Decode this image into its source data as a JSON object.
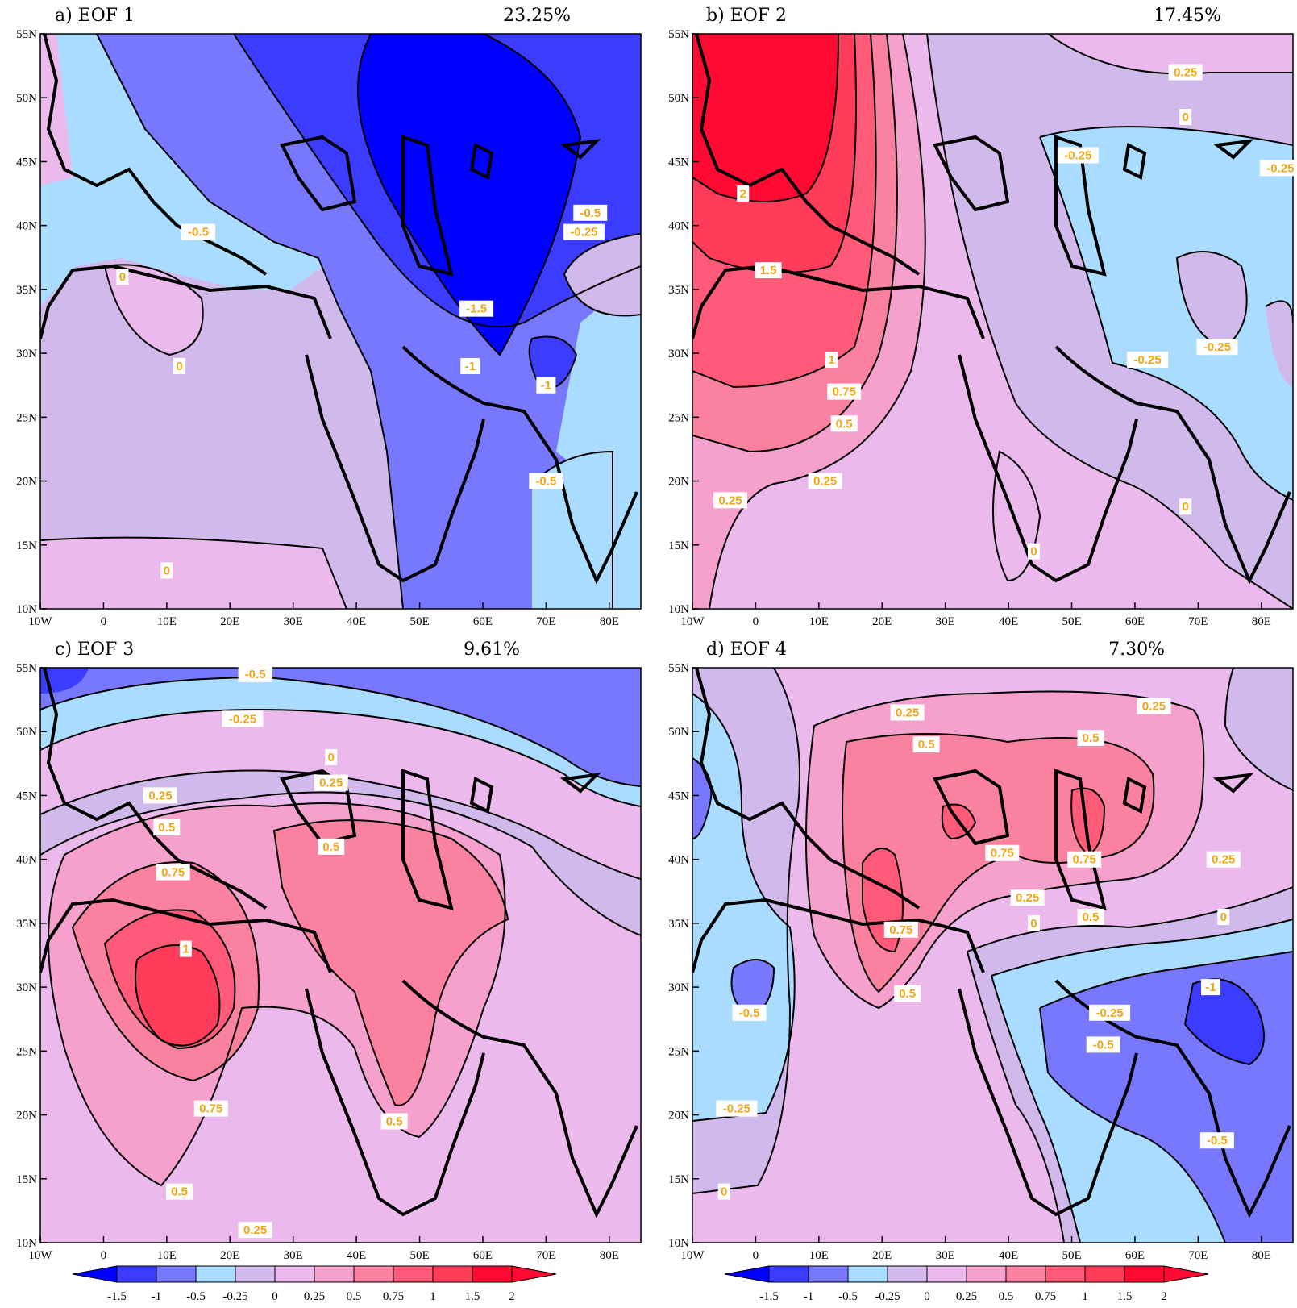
{
  "legend": {
    "levels": [
      "-1.5",
      "-1",
      "-0.5",
      "-0.25",
      "0",
      "0.25",
      "0.5",
      "0.75",
      "1",
      "1.5",
      "2"
    ],
    "colors": [
      "#0000ff",
      "#3c3cff",
      "#7878ff",
      "#aadcff",
      "#d2b9eb",
      "#ebb9eb",
      "#f5a0cd",
      "#fa82a0",
      "#ff5a78",
      "#ff3c5a",
      "#ff0a32",
      "#ff0a32"
    ]
  },
  "panels": [
    {
      "title": "a) EOF 1",
      "variance": "23.25%",
      "xticks": [
        "10W",
        "0",
        "10E",
        "20E",
        "30E",
        "40E",
        "50E",
        "60E",
        "70E",
        "80E"
      ],
      "yticks": [
        "55N",
        "50N",
        "45N",
        "40N",
        "35N",
        "30N",
        "25N",
        "20N",
        "15N",
        "10N"
      ],
      "contour_labels": [
        {
          "text": "-0.5",
          "lon": 15,
          "lat": 39.5
        },
        {
          "text": "0",
          "lon": 3,
          "lat": 36
        },
        {
          "text": "0",
          "lon": 12,
          "lat": 29
        },
        {
          "text": "-1.5",
          "lon": 59,
          "lat": 33.5
        },
        {
          "text": "-1",
          "lon": 58,
          "lat": 29
        },
        {
          "text": "-1",
          "lon": 70,
          "lat": 27.5
        },
        {
          "text": "-0.5",
          "lon": 77,
          "lat": 41
        },
        {
          "text": "-0.25",
          "lon": 76,
          "lat": 39.5
        },
        {
          "text": "-0.5",
          "lon": 70,
          "lat": 20
        },
        {
          "text": "0",
          "lon": 10,
          "lat": 13
        }
      ]
    },
    {
      "title": "b) EOF 2",
      "variance": "17.45%",
      "xticks": [
        "10W",
        "0",
        "10E",
        "20E",
        "30E",
        "40E",
        "50E",
        "60E",
        "70E",
        "80E"
      ],
      "yticks": [
        "55N",
        "50N",
        "45N",
        "40N",
        "35N",
        "30N",
        "25N",
        "20N",
        "15N",
        "10N"
      ],
      "contour_labels": [
        {
          "text": "2",
          "lon": -2,
          "lat": 42.5
        },
        {
          "text": "1.5",
          "lon": 2,
          "lat": 36.5
        },
        {
          "text": "1",
          "lon": 12,
          "lat": 29.5
        },
        {
          "text": "0.75",
          "lon": 14,
          "lat": 27
        },
        {
          "text": "0.5",
          "lon": 14,
          "lat": 24.5
        },
        {
          "text": "0.25",
          "lon": 11,
          "lat": 20
        },
        {
          "text": "0.25",
          "lon": -4,
          "lat": 18.5
        },
        {
          "text": "0.25",
          "lon": 68,
          "lat": 52
        },
        {
          "text": "0",
          "lon": 68,
          "lat": 48.5
        },
        {
          "text": "-0.25",
          "lon": 51,
          "lat": 45.5
        },
        {
          "text": "-0.25",
          "lon": 83,
          "lat": 44.5
        },
        {
          "text": "-0.25",
          "lon": 62,
          "lat": 29.5
        },
        {
          "text": "-0.25",
          "lon": 73,
          "lat": 30.5
        },
        {
          "text": "0",
          "lon": 44,
          "lat": 14.5
        },
        {
          "text": "0",
          "lon": 68,
          "lat": 18
        }
      ]
    },
    {
      "title": "c) EOF 3",
      "variance": "9.61%",
      "xticks": [
        "10W",
        "0",
        "10E",
        "20E",
        "30E",
        "40E",
        "50E",
        "60E",
        "70E",
        "80E"
      ],
      "yticks": [
        "55N",
        "50N",
        "45N",
        "40N",
        "35N",
        "30N",
        "25N",
        "20N",
        "15N",
        "10N"
      ],
      "contour_labels": [
        {
          "text": "-0.5",
          "lon": 24,
          "lat": 54.5
        },
        {
          "text": "-0.25",
          "lon": 22,
          "lat": 51
        },
        {
          "text": "0",
          "lon": 36,
          "lat": 48
        },
        {
          "text": "0.25",
          "lon": 36,
          "lat": 46
        },
        {
          "text": "0.25",
          "lon": 9,
          "lat": 45
        },
        {
          "text": "0.5",
          "lon": 10,
          "lat": 42.5
        },
        {
          "text": "0.5",
          "lon": 36,
          "lat": 41
        },
        {
          "text": "0.75",
          "lon": 11,
          "lat": 39
        },
        {
          "text": "1",
          "lon": 13,
          "lat": 33
        },
        {
          "text": "0.75",
          "lon": 17,
          "lat": 20.5
        },
        {
          "text": "0.5",
          "lon": 46,
          "lat": 19.5
        },
        {
          "text": "0.5",
          "lon": 12,
          "lat": 14
        },
        {
          "text": "0.25",
          "lon": 24,
          "lat": 11
        }
      ]
    },
    {
      "title": "d) EOF 4",
      "variance": "7.30%",
      "xticks": [
        "10W",
        "0",
        "10E",
        "20E",
        "30E",
        "40E",
        "50E",
        "60E",
        "70E",
        "80E"
      ],
      "yticks": [
        "55N",
        "50N",
        "45N",
        "40N",
        "35N",
        "30N",
        "25N",
        "20N",
        "15N",
        "10N"
      ],
      "contour_labels": [
        {
          "text": "0.25",
          "lon": 24,
          "lat": 51.5
        },
        {
          "text": "0.25",
          "lon": 63,
          "lat": 52
        },
        {
          "text": "0.5",
          "lon": 27,
          "lat": 49
        },
        {
          "text": "0.5",
          "lon": 53,
          "lat": 49.5
        },
        {
          "text": "0.75",
          "lon": 39,
          "lat": 40.5
        },
        {
          "text": "0.75",
          "lon": 52,
          "lat": 40
        },
        {
          "text": "0.25",
          "lon": 74,
          "lat": 40
        },
        {
          "text": "0.25",
          "lon": 43,
          "lat": 37
        },
        {
          "text": "0",
          "lon": 44,
          "lat": 35
        },
        {
          "text": "0.5",
          "lon": 53,
          "lat": 35.5
        },
        {
          "text": "0",
          "lon": 74,
          "lat": 35.5
        },
        {
          "text": "0.75",
          "lon": 23,
          "lat": 34.5
        },
        {
          "text": "0.5",
          "lon": 24,
          "lat": 29.5
        },
        {
          "text": "-0.5",
          "lon": -1,
          "lat": 28
        },
        {
          "text": "-1",
          "lon": 72,
          "lat": 30
        },
        {
          "text": "-0.25",
          "lon": 56,
          "lat": 28
        },
        {
          "text": "-0.5",
          "lon": 55,
          "lat": 25.5
        },
        {
          "text": "-0.25",
          "lon": -3,
          "lat": 20.5
        },
        {
          "text": "-0.5",
          "lon": 73,
          "lat": 18
        },
        {
          "text": "0",
          "lon": -5,
          "lat": 14
        }
      ]
    }
  ]
}
